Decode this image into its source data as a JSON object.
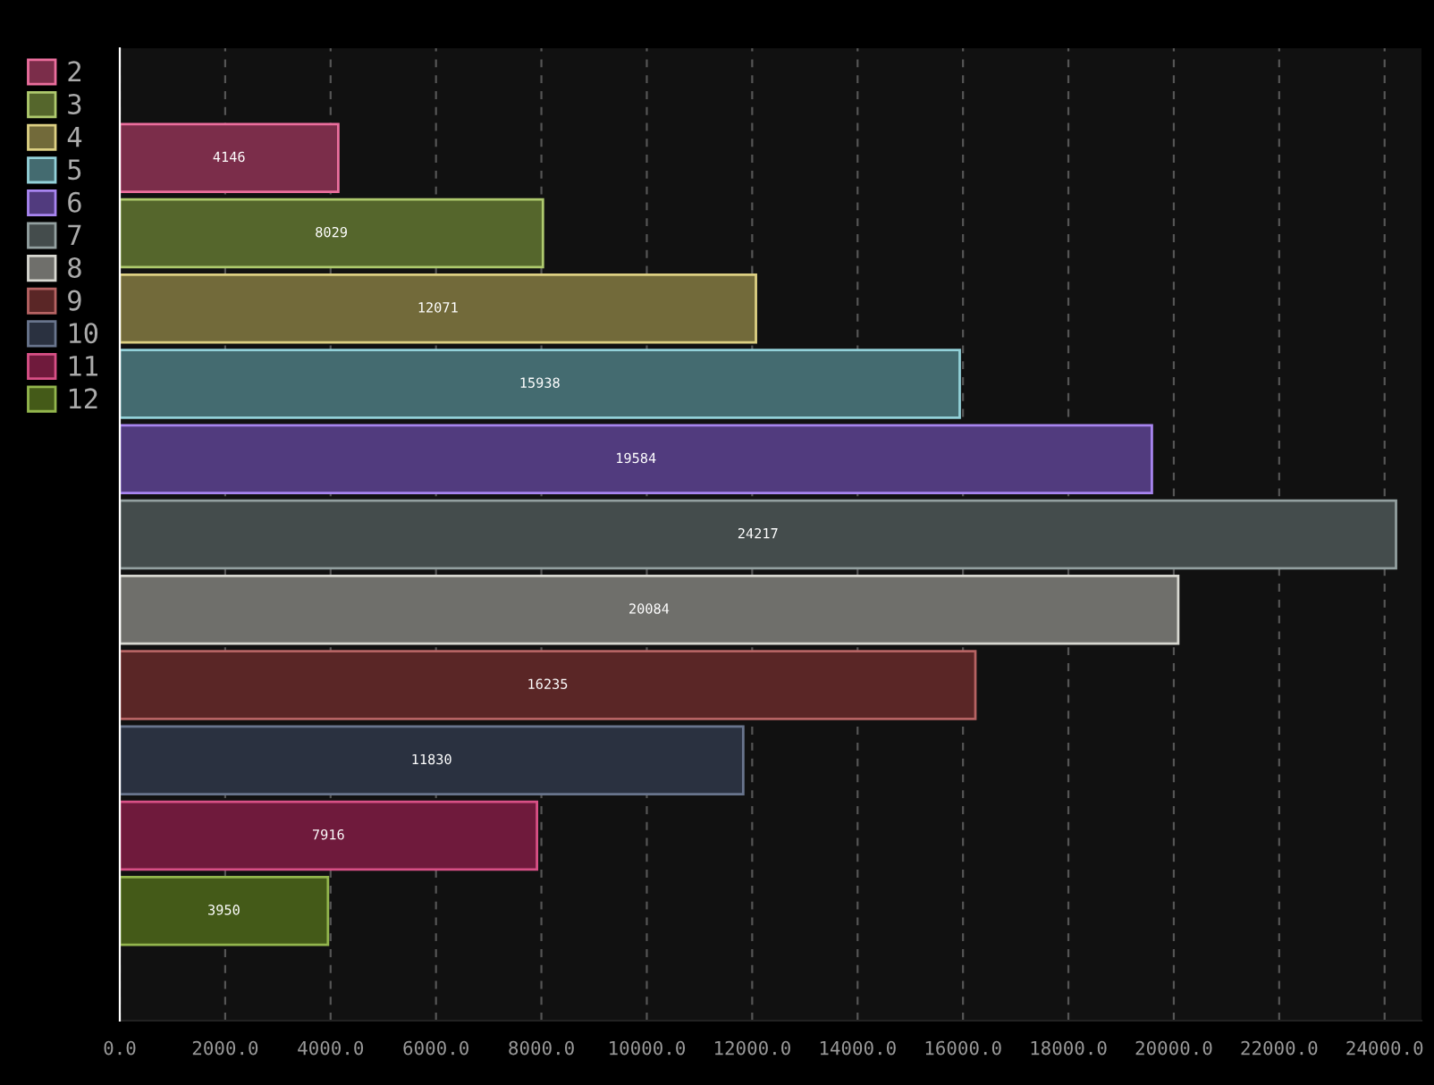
{
  "chart_data": {
    "type": "bar",
    "orientation": "horizontal",
    "categories": [
      null
    ],
    "series": [
      {
        "name": "2",
        "color": "#7b2d4a",
        "values": [
          4146
        ]
      },
      {
        "name": "3",
        "color": "#55662c",
        "values": [
          8029
        ]
      },
      {
        "name": "4",
        "color": "#726a3a",
        "values": [
          12071
        ]
      },
      {
        "name": "5",
        "color": "#446b70",
        "values": [
          15938
        ]
      },
      {
        "name": "6",
        "color": "#513b7e",
        "values": [
          19584
        ]
      },
      {
        "name": "7",
        "color": "#444c4c",
        "values": [
          24217
        ]
      },
      {
        "name": "8",
        "color": "#6f6f6b",
        "values": [
          20084
        ]
      },
      {
        "name": "9",
        "color": "#5a2626",
        "values": [
          16235
        ]
      },
      {
        "name": "10",
        "color": "#2a3140",
        "values": [
          11830
        ]
      },
      {
        "name": "11",
        "color": "#6f1a3c",
        "values": [
          7916
        ]
      },
      {
        "name": "12",
        "color": "#445a18",
        "values": [
          3950
        ]
      }
    ],
    "xlim": [
      0,
      24700
    ],
    "xticks": [
      {
        "value": 0,
        "label": "0.0"
      },
      {
        "value": 2000,
        "label": "2000.0"
      },
      {
        "value": 4000,
        "label": "4000.0"
      },
      {
        "value": 6000,
        "label": "6000.0"
      },
      {
        "value": 8000,
        "label": "8000.0"
      },
      {
        "value": 10000,
        "label": "10000.0"
      },
      {
        "value": 12000,
        "label": "12000.0"
      },
      {
        "value": 14000,
        "label": "14000.0"
      },
      {
        "value": 16000,
        "label": "16000.0"
      },
      {
        "value": 18000,
        "label": "18000.0"
      },
      {
        "value": 20000,
        "label": "20000.0"
      },
      {
        "value": 22000,
        "label": "22000.0"
      },
      {
        "value": 24000,
        "label": "24000.0"
      }
    ],
    "grid": "x",
    "legend": "left",
    "tick_labels": "x",
    "data_labels": true
  }
}
